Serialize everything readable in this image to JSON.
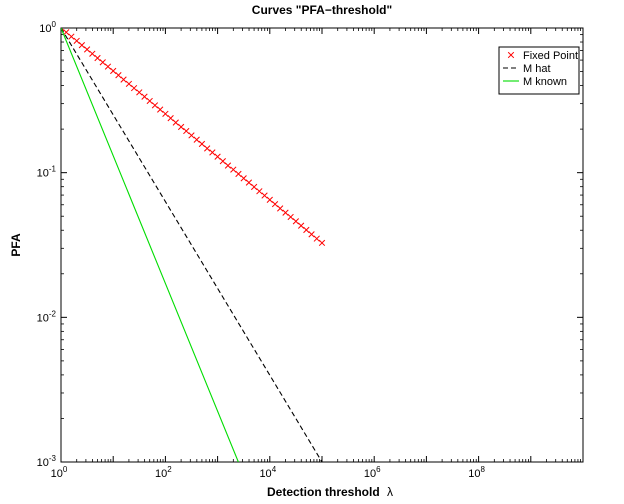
{
  "chart_data": {
    "type": "line",
    "title": "Curves \"PFA−threshold\"",
    "xlabel": "Detection threshold",
    "xlabel_symbol": "λ",
    "ylabel": "PFA",
    "xscale": "log",
    "yscale": "log",
    "xlim": [
      1,
      10000000000
    ],
    "ylim": [
      0.001,
      1
    ],
    "x_ticks": [
      {
        "base": "10",
        "exp": "0",
        "value": 1
      },
      {
        "base": "10",
        "exp": "2",
        "value": 100
      },
      {
        "base": "10",
        "exp": "4",
        "value": 10000
      },
      {
        "base": "10",
        "exp": "6",
        "value": 1000000
      },
      {
        "base": "10",
        "exp": "8",
        "value": 100000000
      }
    ],
    "y_ticks": [
      {
        "base": "10",
        "exp": "0",
        "value": 1
      },
      {
        "base": "10",
        "exp": "-1",
        "value": 0.1
      },
      {
        "base": "10",
        "exp": "-2",
        "value": 0.01
      },
      {
        "base": "10",
        "exp": "-3",
        "value": 0.001
      }
    ],
    "grid": false,
    "legend_position": "top-right",
    "series": [
      {
        "name": "Fixed Point",
        "style": "markers",
        "marker": "x",
        "color": "#ff0000",
        "x": [
          1,
          1.26,
          1.58,
          2,
          2.51,
          3.16,
          3.98,
          5.01,
          6.31,
          7.94,
          10,
          12.6,
          15.8,
          20,
          25.1,
          31.6,
          39.8,
          50.1,
          63.1,
          79.4,
          100,
          126,
          158,
          200,
          251,
          316,
          398,
          501,
          631,
          794,
          1000,
          1260,
          1580,
          2000,
          2510,
          3160,
          3980,
          5010,
          6310,
          7940,
          10000,
          12600,
          15800,
          20000,
          25100,
          31600,
          39800,
          50100,
          63100,
          79400,
          100000
        ],
        "y": [
          1,
          0.935,
          0.872,
          0.815,
          0.761,
          0.711,
          0.664,
          0.62,
          0.579,
          0.541,
          0.505,
          0.472,
          0.44,
          0.411,
          0.384,
          0.359,
          0.335,
          0.313,
          0.292,
          0.273,
          0.255,
          0.238,
          0.222,
          0.207,
          0.194,
          0.181,
          0.169,
          0.158,
          0.147,
          0.138,
          0.129,
          0.12,
          0.112,
          0.105,
          0.098,
          0.0914,
          0.0854,
          0.0797,
          0.0744,
          0.0695,
          0.0649,
          0.0606,
          0.0566,
          0.0529,
          0.0494,
          0.0461,
          0.043,
          0.0402,
          0.0375,
          0.035,
          0.0327
        ]
      },
      {
        "name": "M hat",
        "style": "dashed",
        "color": "#000000",
        "x": [
          1,
          100000
        ],
        "y": [
          1,
          0.001
        ]
      },
      {
        "name": "M known",
        "style": "solid",
        "color": "#00dd00",
        "x": [
          1,
          2500
        ],
        "y": [
          1,
          0.001
        ]
      }
    ]
  }
}
